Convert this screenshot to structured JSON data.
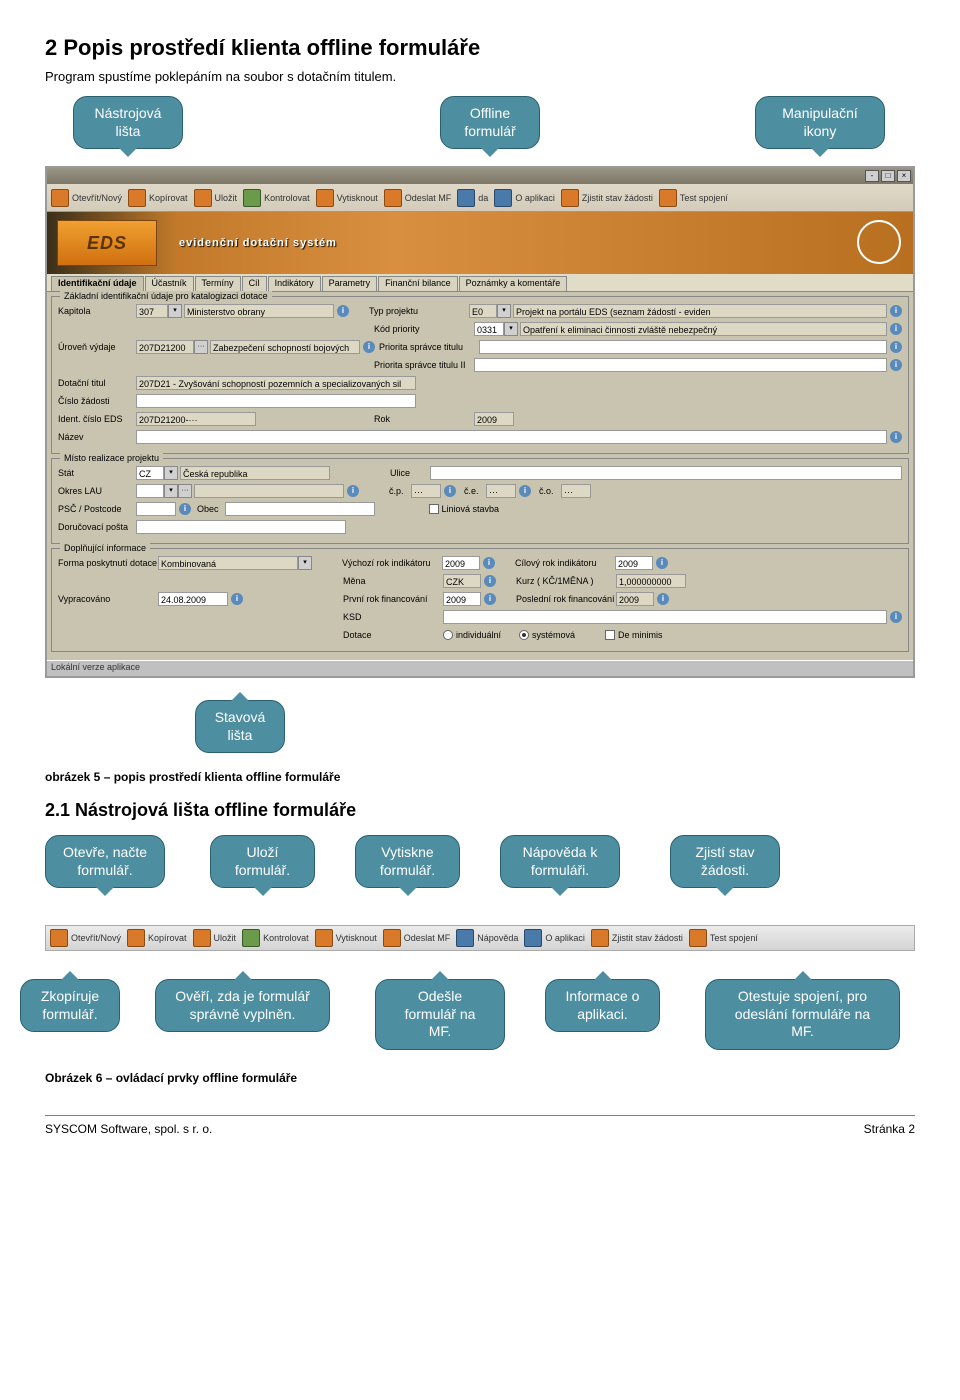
{
  "heading1": "2  Popis prostředí klienta offline formuláře",
  "intro": "Program spustíme poklepáním na soubor s dotačním titulem.",
  "callouts_top": {
    "c1": "Nástrojová\nlišta",
    "c2": "Offline\nformulář",
    "c3": "Manipulační\nikony"
  },
  "toolbar": {
    "items": [
      "Otevřít/Nový",
      "Kopírovat",
      "Uložit",
      "Kontrolovat",
      "Vytisknout",
      "Odeslat MF",
      "da",
      "O aplikaci",
      "Zjistit stav žádosti",
      "Test spojení"
    ]
  },
  "banner": {
    "logo": "EDS",
    "text": "evidenční dotační systém"
  },
  "tabs": [
    "Identifikační údaje",
    "Účastník",
    "Termíny",
    "Cíl",
    "Indikátory",
    "Parametry",
    "Finanční bilance",
    "Poznámky a komentáře"
  ],
  "fs1": {
    "legend": "Základní identifikační údaje pro katalogizaci dotace",
    "kapitola_l": "Kapitola",
    "kapitola_v": "307",
    "kapitola_t": "Ministerstvo obrany",
    "typ_l": "Typ projektu",
    "typ_v": "E0",
    "typ_t": "Projekt na portálu EDS (seznam žádostí - eviden",
    "kod_l": "Kód priority",
    "kod_v": "0331",
    "kod_t": "Opatření k eliminaci činnosti zvláště nebezpečný",
    "uroven_l": "Úroveň výdaje",
    "uroven_v": "207D21200",
    "uroven_t": "Zabezpečení schopností bojových útvarů",
    "pri1_l": "Priorita správce titulu",
    "pri2_l": "Priorita správce titulu II",
    "dotac_l": "Dotační titul",
    "dotac_v": "207D21 - Zvyšování schopností pozemních a specializovaných sil",
    "cislo_l": "Číslo žádosti",
    "ident_l": "Ident. číslo EDS",
    "ident_v": "207D21200-···",
    "rok_l": "Rok",
    "rok_v": "2009",
    "nazev_l": "Název"
  },
  "fs2": {
    "legend": "Místo realizace projektu",
    "stat_l": "Stát",
    "stat_v": "CZ",
    "stat_t": "Česká republika",
    "ulice_l": "Ulice",
    "okres_l": "Okres LAU",
    "cp_l": "č.p.",
    "cp_v": "···",
    "ce_l": "č.e.",
    "ce_v": "···",
    "co_l": "č.o.",
    "co_v": "···",
    "psc_l": "PSČ / Postcode",
    "obec_l": "Obec",
    "lin_l": "Liniová stavba",
    "doruc_l": "Doručovací pošta"
  },
  "fs3": {
    "legend": "Doplňující informace",
    "forma_l": "Forma poskytnutí dotace",
    "forma_v": "Kombinovaná",
    "vychozi_l": "Výchozí rok indikátoru",
    "vychozi_v": "2009",
    "cilovy_l": "Cílový rok indikátoru",
    "cilovy_v": "2009",
    "mena_l": "Měna",
    "mena_v": "CZK",
    "kurz_l": "Kurz ( KČ/1MĚNA )",
    "kurz_v": "1,000000000",
    "vypr_l": "Vypracováno",
    "vypr_v": "24.08.2009",
    "prvni_l": "První rok financování",
    "prvni_v": "2009",
    "posl_l": "Poslední rok financování",
    "posl_v": "2009",
    "ksd_l": "KSD",
    "dotace_l": "Dotace",
    "r1": "individuální",
    "r2": "systémová",
    "cb": "De minimis"
  },
  "status": "Lokální verze aplikace",
  "callout_mid": "Stavová\nlišta",
  "caption1": "obrázek 5 – popis prostředí klienta offline formuláře",
  "heading2": "2.1   Nástrojová lišta offline formuláře",
  "callouts_r2": {
    "c1": "Otevře, načte formulář.",
    "c2": "Uloží formulář.",
    "c3": "Vytiskne formulář.",
    "c4": "Nápověda k formuláři.",
    "c5": "Zjistí stav žádosti."
  },
  "toolbar2": {
    "items": [
      "Otevřít/Nový",
      "Kopírovat",
      "Uložit",
      "Kontrolovat",
      "Vytisknout",
      "Odeslat MF",
      "Nápověda",
      "O aplikaci",
      "Zjistit stav žádosti",
      "Test spojení"
    ]
  },
  "callouts_r3": {
    "c1": "Zkopíruje formulář.",
    "c2": "Ověří, zda je formulář správně vyplněn.",
    "c3": "Odešle formulář na MF.",
    "c4": "Informace o aplikaci.",
    "c5": "Otestuje spojení, pro odeslání formuláře na MF."
  },
  "caption2": "Obrázek 6 – ovládací prvky offline formuláře",
  "footer": {
    "left": "SYSCOM Software, spol. s r. o.",
    "right": "Stránka 2"
  }
}
